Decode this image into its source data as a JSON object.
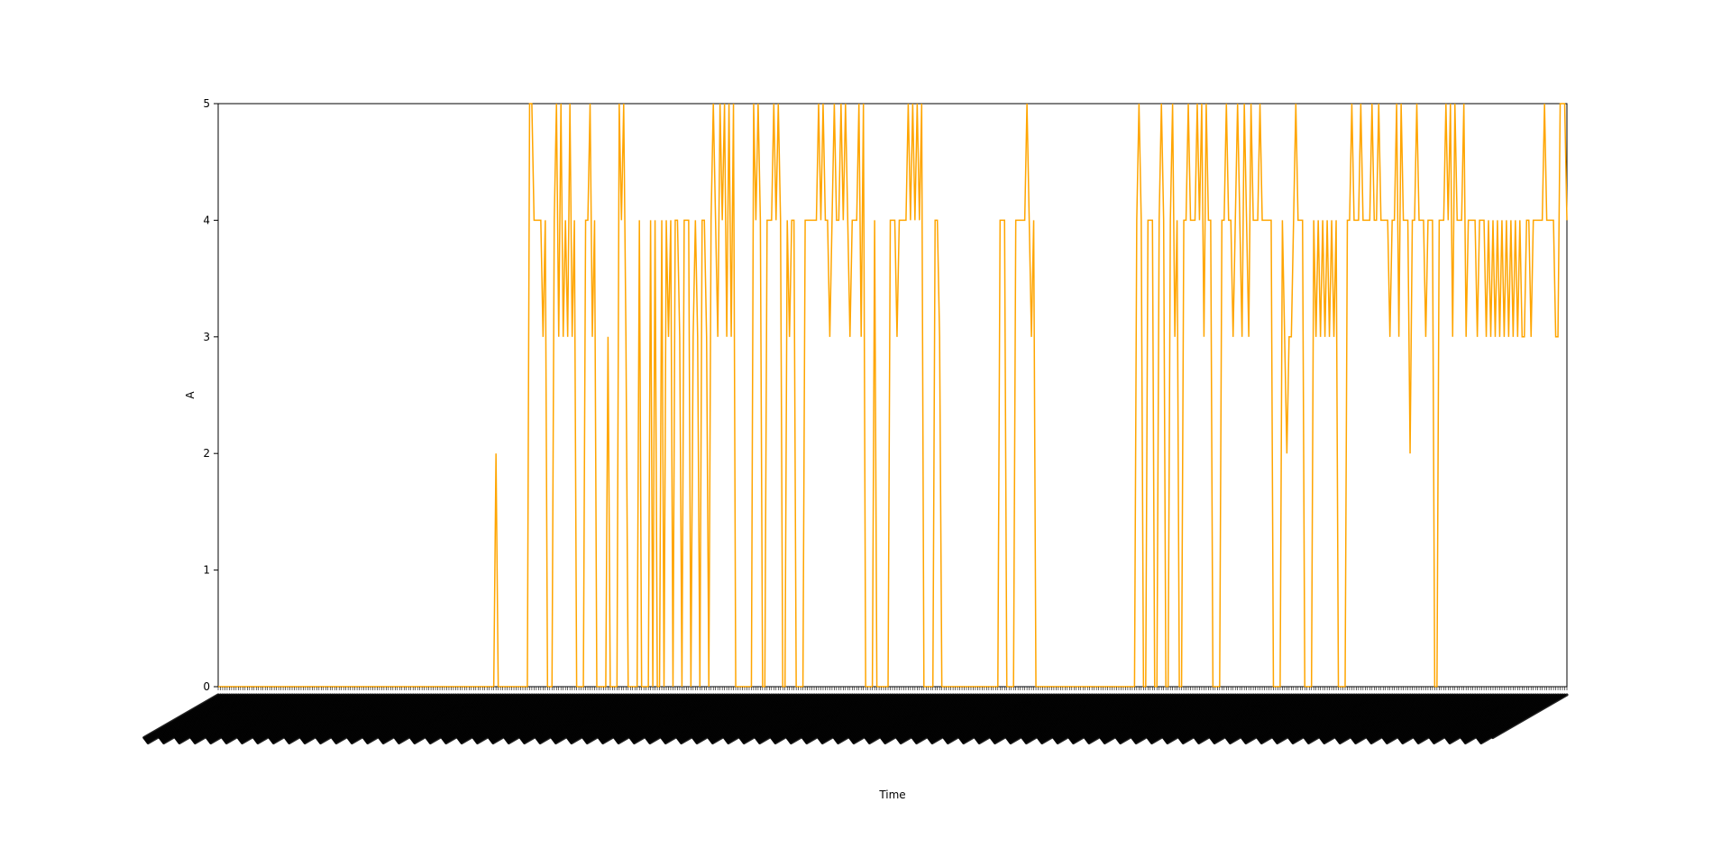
{
  "chart_data": {
    "type": "line",
    "title": "",
    "xlabel": "Time",
    "ylabel": "A",
    "ylim": [
      0,
      5
    ],
    "yticks": [
      "0",
      "1",
      "2",
      "3",
      "4",
      "5"
    ],
    "grid": false,
    "legend": "none",
    "x_tick_labels_rotated": true,
    "series": [
      {
        "color": "#FFA500",
        "values": [
          0,
          0,
          0,
          0,
          0,
          0,
          0,
          0,
          0,
          0,
          0,
          0,
          0,
          0,
          0,
          0,
          0,
          0,
          0,
          0,
          0,
          0,
          0,
          0,
          0,
          0,
          0,
          0,
          0,
          0,
          0,
          0,
          0,
          0,
          0,
          0,
          0,
          0,
          0,
          0,
          0,
          0,
          0,
          0,
          0,
          0,
          0,
          0,
          0,
          0,
          0,
          0,
          0,
          0,
          0,
          0,
          0,
          0,
          0,
          0,
          0,
          0,
          0,
          0,
          0,
          0,
          0,
          0,
          0,
          0,
          0,
          0,
          0,
          0,
          0,
          0,
          0,
          0,
          0,
          0,
          0,
          0,
          0,
          0,
          0,
          0,
          0,
          0,
          0,
          0,
          0,
          0,
          0,
          0,
          0,
          0,
          0,
          0,
          0,
          0,
          0,
          0,
          0,
          0,
          0,
          0,
          0,
          0,
          0,
          0,
          0,
          0,
          0,
          0,
          0,
          0,
          0,
          0,
          0,
          0,
          0,
          0,
          0,
          0,
          2,
          0,
          0,
          0,
          0,
          0,
          0,
          0,
          0,
          0,
          0,
          0,
          0,
          0,
          0,
          5,
          5,
          4,
          4,
          4,
          4,
          3,
          4,
          0,
          0,
          0,
          4,
          5,
          3,
          5,
          3,
          4,
          3,
          5,
          3,
          4,
          0,
          0,
          0,
          0,
          4,
          4,
          5,
          3,
          4,
          0,
          0,
          0,
          0,
          0,
          3,
          0,
          0,
          0,
          0,
          5,
          4,
          5,
          3,
          0,
          0,
          0,
          0,
          0,
          4,
          0,
          0,
          0,
          0,
          4,
          0,
          4,
          0,
          0,
          4,
          0,
          4,
          3,
          4,
          0,
          4,
          4,
          3,
          0,
          4,
          4,
          4,
          0,
          3,
          4,
          3,
          0,
          4,
          4,
          3,
          0,
          4,
          5,
          4,
          3,
          5,
          4,
          5,
          3,
          5,
          3,
          5,
          0,
          0,
          0,
          0,
          0,
          0,
          0,
          0,
          5,
          4,
          5,
          4,
          0,
          0,
          4,
          4,
          4,
          5,
          4,
          5,
          4,
          0,
          0,
          4,
          3,
          4,
          4,
          0,
          0,
          0,
          0,
          4,
          4,
          4,
          4,
          4,
          4,
          5,
          4,
          5,
          4,
          4,
          3,
          4,
          5,
          4,
          4,
          5,
          4,
          5,
          4,
          3,
          4,
          4,
          4,
          5,
          3,
          5,
          0,
          0,
          0,
          0,
          4,
          0,
          0,
          0,
          0,
          0,
          0,
          4,
          4,
          4,
          3,
          4,
          4,
          4,
          4,
          5,
          4,
          5,
          4,
          5,
          4,
          5,
          0,
          0,
          0,
          0,
          0,
          4,
          4,
          3,
          0,
          0,
          0,
          0,
          0,
          0,
          0,
          0,
          0,
          0,
          0,
          0,
          0,
          0,
          0,
          0,
          0,
          0,
          0,
          0,
          0,
          0,
          0,
          0,
          0,
          0,
          4,
          4,
          4,
          0,
          0,
          0,
          0,
          4,
          4,
          4,
          4,
          4,
          5,
          4,
          3,
          4,
          0,
          0,
          0,
          0,
          0,
          0,
          0,
          0,
          0,
          0,
          0,
          0,
          0,
          0,
          0,
          0,
          0,
          0,
          0,
          0,
          0,
          0,
          0,
          0,
          0,
          0,
          0,
          0,
          0,
          0,
          0,
          0,
          0,
          0,
          0,
          0,
          0,
          0,
          0,
          0,
          0,
          0,
          0,
          0,
          0,
          4,
          5,
          4,
          0,
          0,
          4,
          4,
          4,
          0,
          0,
          4,
          5,
          4,
          0,
          0,
          4,
          5,
          3,
          4,
          0,
          0,
          4,
          4,
          5,
          4,
          4,
          4,
          5,
          4,
          5,
          3,
          5,
          4,
          4,
          0,
          0,
          0,
          0,
          4,
          4,
          5,
          4,
          4,
          3,
          4,
          5,
          4,
          3,
          5,
          4,
          3,
          5,
          4,
          4,
          4,
          5,
          4,
          4,
          4,
          4,
          4,
          0,
          0,
          0,
          0,
          4,
          3,
          2,
          3,
          3,
          4,
          5,
          4,
          4,
          4,
          0,
          0,
          0,
          0,
          4,
          3,
          4,
          3,
          4,
          3,
          4,
          3,
          4,
          3,
          4,
          0,
          0,
          0,
          0,
          4,
          4,
          5,
          4,
          4,
          4,
          5,
          4,
          4,
          4,
          4,
          5,
          4,
          4,
          5,
          4,
          4,
          4,
          4,
          3,
          4,
          4,
          5,
          3,
          5,
          4,
          4,
          4,
          2,
          4,
          4,
          5,
          4,
          4,
          4,
          3,
          4,
          4,
          4,
          0,
          0,
          4,
          4,
          4,
          5,
          4,
          5,
          3,
          5,
          4,
          4,
          4,
          5,
          3,
          4,
          4,
          4,
          4,
          3,
          4,
          4,
          4,
          3,
          4,
          3,
          4,
          3,
          4,
          3,
          4,
          3,
          4,
          3,
          4,
          3,
          4,
          3,
          4,
          3,
          3,
          4,
          4,
          3,
          4,
          4,
          4,
          4,
          4,
          5,
          4,
          4,
          4,
          4,
          3,
          3,
          5,
          5,
          5,
          4
        ]
      }
    ]
  }
}
